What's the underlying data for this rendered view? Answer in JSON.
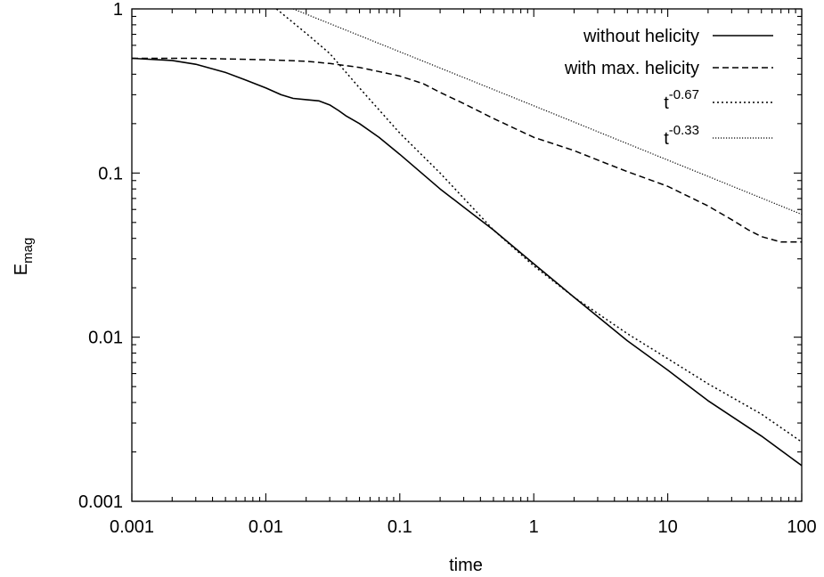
{
  "chart_data": {
    "type": "line",
    "xlabel": "time",
    "ylabel": {
      "main": "E",
      "sub": "mag"
    },
    "xscale": "log",
    "yscale": "log",
    "xlim": [
      0.001,
      100
    ],
    "ylim": [
      0.001,
      1
    ],
    "x_ticks": [
      {
        "value": 0.001,
        "label": "0.001"
      },
      {
        "value": 0.01,
        "label": "0.01"
      },
      {
        "value": 0.1,
        "label": "0.1"
      },
      {
        "value": 1,
        "label": "1"
      },
      {
        "value": 10,
        "label": "10"
      },
      {
        "value": 100,
        "label": "100"
      }
    ],
    "y_ticks": [
      {
        "value": 0.001,
        "label": "0.001"
      },
      {
        "value": 0.01,
        "label": "0.01"
      },
      {
        "value": 0.1,
        "label": "0.1"
      },
      {
        "value": 1,
        "label": "1"
      }
    ],
    "grid": false,
    "legend_position": "top-right",
    "series": [
      {
        "name": "without helicity",
        "style": "solid",
        "color": "#000000",
        "points": [
          [
            0.001,
            0.5
          ],
          [
            0.002,
            0.485
          ],
          [
            0.003,
            0.46
          ],
          [
            0.005,
            0.41
          ],
          [
            0.007,
            0.37
          ],
          [
            0.01,
            0.33
          ],
          [
            0.013,
            0.3
          ],
          [
            0.016,
            0.285
          ],
          [
            0.02,
            0.28
          ],
          [
            0.025,
            0.275
          ],
          [
            0.03,
            0.26
          ],
          [
            0.035,
            0.24
          ],
          [
            0.04,
            0.222
          ],
          [
            0.05,
            0.2
          ],
          [
            0.07,
            0.165
          ],
          [
            0.1,
            0.13
          ],
          [
            0.2,
            0.08
          ],
          [
            0.3,
            0.062
          ],
          [
            0.5,
            0.045
          ],
          [
            1,
            0.028
          ],
          [
            2,
            0.0175
          ],
          [
            5,
            0.0095
          ],
          [
            10,
            0.0063
          ],
          [
            20,
            0.0041
          ],
          [
            50,
            0.0025
          ],
          [
            100,
            0.00165
          ]
        ]
      },
      {
        "name": "with max. helicity",
        "style": "dashed",
        "color": "#000000",
        "points": [
          [
            0.001,
            0.5
          ],
          [
            0.003,
            0.5
          ],
          [
            0.01,
            0.49
          ],
          [
            0.02,
            0.48
          ],
          [
            0.03,
            0.465
          ],
          [
            0.05,
            0.44
          ],
          [
            0.1,
            0.39
          ],
          [
            0.15,
            0.35
          ],
          [
            0.2,
            0.31
          ],
          [
            0.3,
            0.265
          ],
          [
            0.5,
            0.215
          ],
          [
            1,
            0.165
          ],
          [
            2,
            0.137
          ],
          [
            3,
            0.12
          ],
          [
            5,
            0.102
          ],
          [
            10,
            0.083
          ],
          [
            20,
            0.063
          ],
          [
            30,
            0.052
          ],
          [
            40,
            0.045
          ],
          [
            50,
            0.041
          ],
          [
            70,
            0.038
          ],
          [
            100,
            0.038
          ]
        ]
      },
      {
        "name": "t^-0.67",
        "label_base": "t",
        "label_exponent": "-0.67",
        "style": "dotted",
        "color": "#000000",
        "points": [
          [
            0.012,
            1.0
          ],
          [
            0.02,
            0.71
          ],
          [
            0.03,
            0.535
          ],
          [
            0.05,
            0.33
          ],
          [
            0.1,
            0.175
          ],
          [
            0.2,
            0.1
          ],
          [
            0.5,
            0.045
          ],
          [
            1,
            0.0272
          ],
          [
            2,
            0.0175
          ],
          [
            5,
            0.0105
          ],
          [
            10,
            0.0074
          ],
          [
            20,
            0.0052
          ],
          [
            50,
            0.0034
          ],
          [
            100,
            0.0023
          ]
        ]
      },
      {
        "name": "t^-0.33",
        "label_base": "t",
        "label_exponent": "-0.33",
        "style": "dotted-fine",
        "color": "#000000",
        "points": [
          [
            0.016,
            1.0
          ],
          [
            0.1,
            0.548
          ],
          [
            1,
            0.257
          ],
          [
            10,
            0.12
          ],
          [
            100,
            0.056
          ]
        ]
      }
    ]
  }
}
